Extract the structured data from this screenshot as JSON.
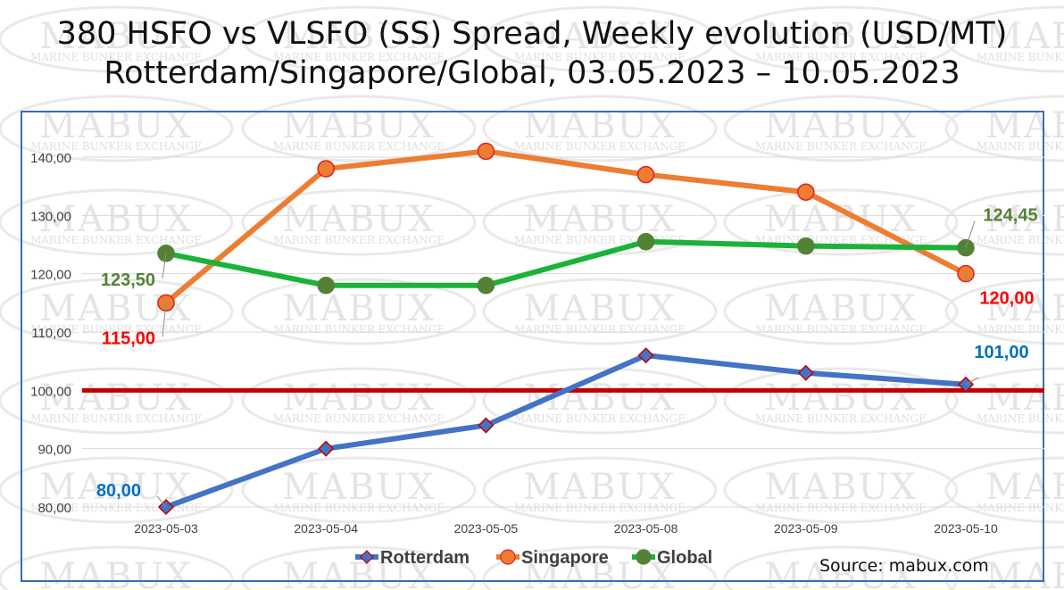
{
  "title_line1": "380 HSFO vs VLSFO (SS) Spread, Weekly evolution (USD/MT)",
  "title_line2": "Rotterdam/Singapore/Global, 03.05.2023 – 10.05.2023",
  "source": "Source: mabux.com",
  "watermark": {
    "brand": "MABUX",
    "subtitle": "MARINE BUNKER EXCHANGE"
  },
  "colors": {
    "rotterdam": "#4472C4",
    "singapore": "#ED7D31",
    "global": "#1BB23A",
    "global_marker": "#548235",
    "reference_line": "#C00000",
    "label_rotterdam": "#0070C0",
    "label_singapore": "#FF0000",
    "label_global": "#548235"
  },
  "chart_data": {
    "type": "line",
    "title": "380 HSFO vs VLSFO (SS) Spread, Weekly evolution (USD/MT)",
    "categories": [
      "2023-05-03",
      "2023-05-04",
      "2023-05-05",
      "2023-05-08",
      "2023-05-09",
      "2023-05-10"
    ],
    "ylim": [
      78,
      146
    ],
    "yticks": [
      "80,00",
      "90,00",
      "100,00",
      "110,00",
      "120,00",
      "130,00",
      "140,00"
    ],
    "ytick_values": [
      80,
      90,
      100,
      110,
      120,
      130,
      140
    ],
    "reference_line": 100,
    "grid": true,
    "legend": "bottom",
    "series": [
      {
        "name": "Rotterdam",
        "values": [
          80,
          90,
          94,
          106,
          103,
          101
        ]
      },
      {
        "name": "Singapore",
        "values": [
          115,
          138,
          141,
          137,
          134,
          120
        ]
      },
      {
        "name": "Global",
        "values": [
          123.5,
          118,
          118,
          125.5,
          124.75,
          124.45
        ]
      }
    ],
    "annotations": [
      {
        "series": "Rotterdam",
        "index": 0,
        "text": "80,00"
      },
      {
        "series": "Rotterdam",
        "index": 5,
        "text": "101,00"
      },
      {
        "series": "Singapore",
        "index": 0,
        "text": "115,00"
      },
      {
        "series": "Singapore",
        "index": 5,
        "text": "120,00"
      },
      {
        "series": "Global",
        "index": 0,
        "text": "123,50"
      },
      {
        "series": "Global",
        "index": 5,
        "text": "124,45"
      }
    ]
  }
}
